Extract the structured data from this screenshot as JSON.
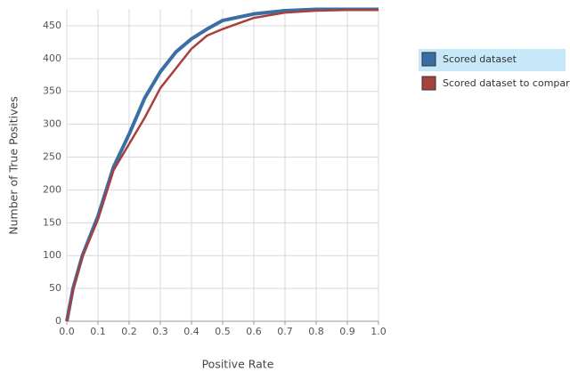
{
  "chart_data": {
    "type": "line",
    "x_label": "Positive Rate",
    "y_label": "Number of True Positives",
    "x": [
      0,
      0.02,
      0.05,
      0.1,
      0.15,
      0.2,
      0.25,
      0.3,
      0.35,
      0.4,
      0.45,
      0.5,
      0.6,
      0.7,
      0.8,
      0.9,
      1.0
    ],
    "series": [
      {
        "name": "Scored dataset",
        "color": "#3a6ea5",
        "values": [
          0,
          50,
          100,
          160,
          235,
          285,
          340,
          380,
          410,
          430,
          445,
          458,
          468,
          473,
          475,
          475,
          475
        ]
      },
      {
        "name": "Scored dataset to compare",
        "color": "#a8403c",
        "values": [
          0,
          48,
          98,
          155,
          230,
          270,
          310,
          355,
          385,
          415,
          435,
          445,
          462,
          470,
          473,
          474,
          474
        ]
      }
    ],
    "xlim": [
      0,
      1.0
    ],
    "ylim": [
      0,
      475
    ],
    "xticks": [
      {
        "value": 0,
        "label": "0.0"
      },
      0.1,
      0.2,
      0.3,
      0.4,
      0.5,
      0.6,
      0.7,
      0.8,
      0.9,
      {
        "value": 1.0,
        "label": "1.0"
      }
    ],
    "yticks": [
      0,
      50,
      100,
      150,
      200,
      250,
      300,
      350,
      400,
      450
    ],
    "grid": true,
    "legend": "right"
  }
}
